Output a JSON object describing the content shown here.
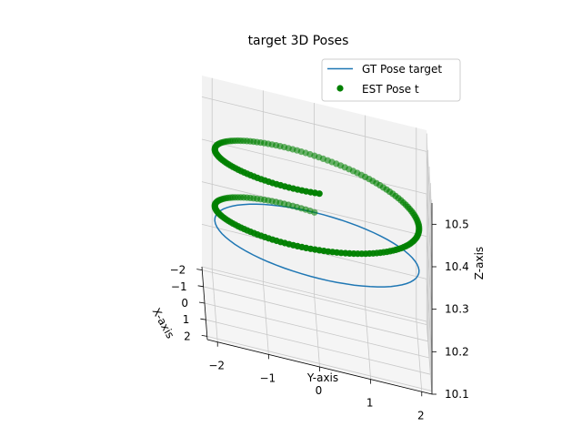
{
  "chart_data": {
    "type": "scatter",
    "projection": "3d",
    "title": "target 3D Poses",
    "xlabel": "X-axis",
    "ylabel": "Y-axis",
    "zlabel": "Z-axis",
    "xticks": [
      "−2",
      "−1",
      "0",
      "1",
      "2"
    ],
    "yticks": [
      "−2",
      "−1",
      "0",
      "1",
      "2"
    ],
    "zticks": [
      "10.1",
      "10.2",
      "10.3",
      "10.4",
      "10.5"
    ],
    "xlim": [
      -2.2,
      2.2
    ],
    "ylim": [
      -2.2,
      2.2
    ],
    "zlim": [
      10.1,
      10.55
    ],
    "grid": true,
    "legend_position": "upper-right",
    "series": [
      {
        "name": "GT Pose target",
        "kind": "line",
        "color": "#1f77b4",
        "shape": "circle",
        "radius": 2.0,
        "z": 10.3,
        "points": 72
      },
      {
        "name": "EST Pose t",
        "kind": "scatter",
        "color": "#008000",
        "shape": "helix",
        "radius": 2.0,
        "z_start": 10.3,
        "z_end": 10.5,
        "turns": 1.5,
        "points": 220
      }
    ]
  }
}
